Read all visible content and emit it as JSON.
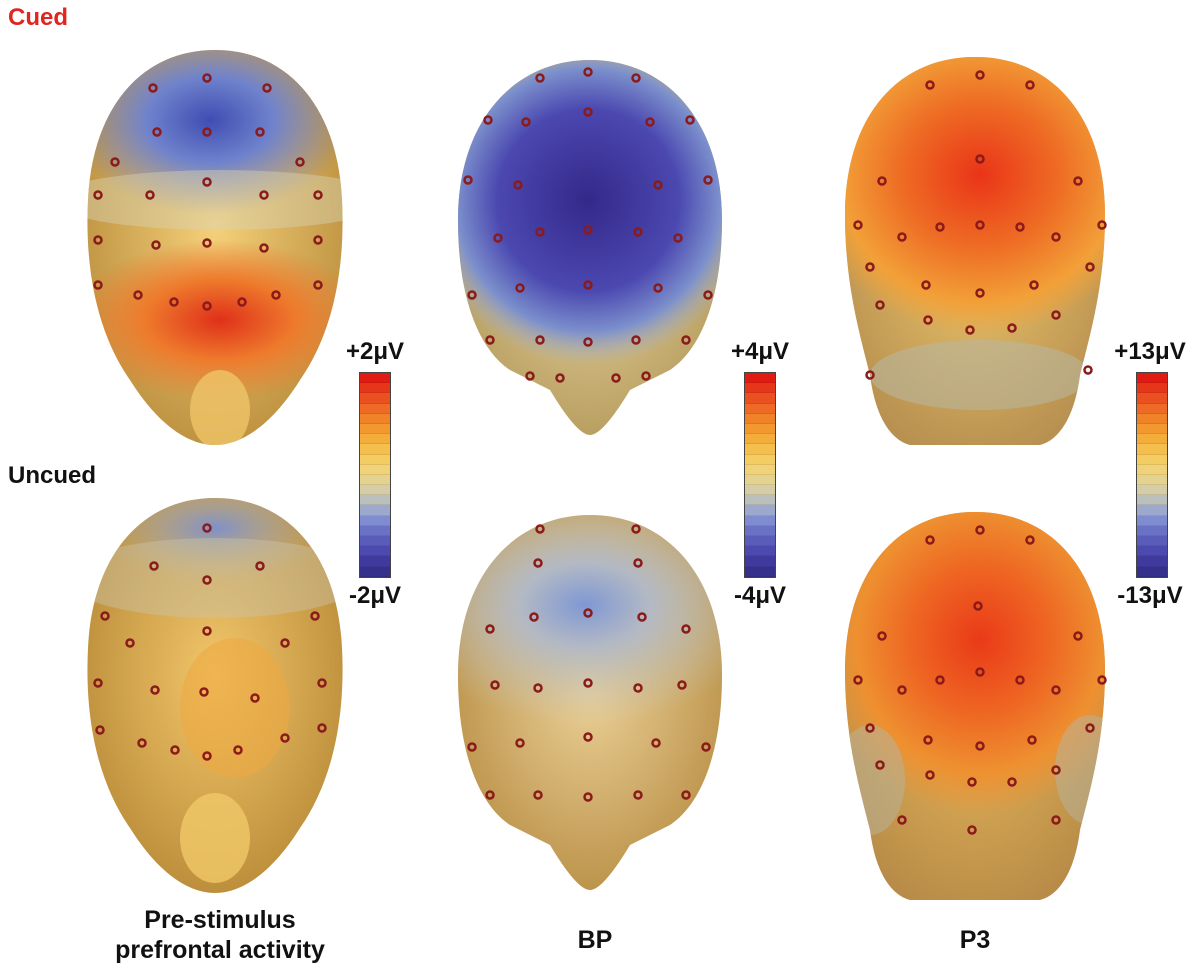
{
  "rows": {
    "cued": {
      "label": "Cued",
      "color": "#e0261f"
    },
    "uncued": {
      "label": "Uncued",
      "color": "#111111"
    }
  },
  "columns": [
    {
      "caption_line1": "Pre-stimulus",
      "caption_line2": "prefrontal activity",
      "scale_max": "+2μV",
      "scale_min": "-2μV"
    },
    {
      "caption_line1": "BP",
      "caption_line2": "",
      "scale_max": "+4μV",
      "scale_min": "-4μV"
    },
    {
      "caption_line1": "P3",
      "caption_line2": "",
      "scale_max": "+13μV",
      "scale_min": "-13μV"
    }
  ],
  "colorscale": [
    "#e01b12",
    "#e6361a",
    "#ea5020",
    "#ee6a26",
    "#f08228",
    "#f2982e",
    "#f4ad3a",
    "#f5bf4e",
    "#f4cc64",
    "#f0d27a",
    "#e4d290",
    "#d4cda8",
    "#bcc0bc",
    "#9ca8cc",
    "#7f8cd0",
    "#6a72c6",
    "#5a5cba",
    "#4c4aae",
    "#403a9e",
    "#35308c"
  ],
  "heads": {
    "cued_prefrontal": {
      "base": "#e6c070",
      "hot": "#e33a1c",
      "cold": "#4a60c4"
    },
    "cued_bp": {
      "base": "#dcc596",
      "hot": "#e32a14",
      "cold": "#38309e"
    },
    "cued_p3": {
      "base": "#e0b466",
      "hot": "#ee3a1a",
      "cold": "#8f9cc0"
    },
    "uncued_prefrontal": {
      "base": "#e6b85a",
      "hot": "#f0a83a",
      "cold": "#7f96cc"
    },
    "uncued_bp": {
      "base": "#e2c482",
      "hot": "#eeae45",
      "cold": "#6f8cd0"
    },
    "uncued_p3": {
      "base": "#e4a850",
      "hot": "#ee4a1e",
      "cold": "#b9b7a6"
    }
  }
}
